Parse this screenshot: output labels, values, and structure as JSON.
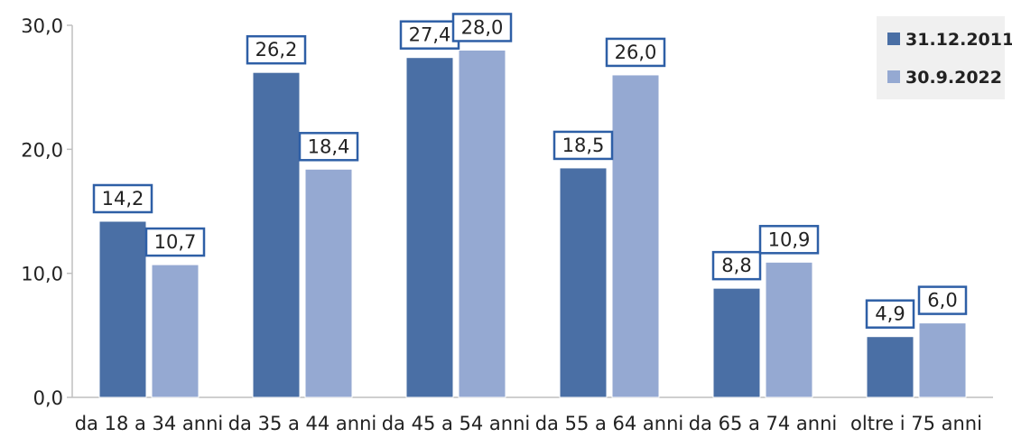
{
  "chart_data": {
    "type": "bar",
    "categories": [
      "da 18 a 34 anni",
      "da 35 a 44 anni",
      "da 45 a 54 anni",
      "da 55 a 64 anni",
      "da 65 a 74 anni",
      "oltre i 75 anni"
    ],
    "series": [
      {
        "name": "31.12.2011",
        "values": [
          14.2,
          26.2,
          27.4,
          18.5,
          8.8,
          4.9
        ],
        "color": "#4a6fa5",
        "labels": [
          "14,2",
          "26,2",
          "27,4",
          "18,5",
          "8,8",
          "4,9"
        ]
      },
      {
        "name": "30.9.2022",
        "values": [
          10.7,
          18.4,
          28.0,
          26.0,
          10.9,
          6.0
        ],
        "color": "#95a9d2",
        "labels": [
          "10,7",
          "18,4",
          "28,0",
          "26,0",
          "10,9",
          "6,0"
        ]
      }
    ],
    "ylim": [
      0,
      30
    ],
    "yticks": [
      "0,0",
      "10,0",
      "20,0",
      "30,0"
    ],
    "ytick_values": [
      0,
      10,
      20,
      30
    ],
    "legend_position": "top-right",
    "grid": false,
    "label_border_color": "#2e5fa6"
  }
}
